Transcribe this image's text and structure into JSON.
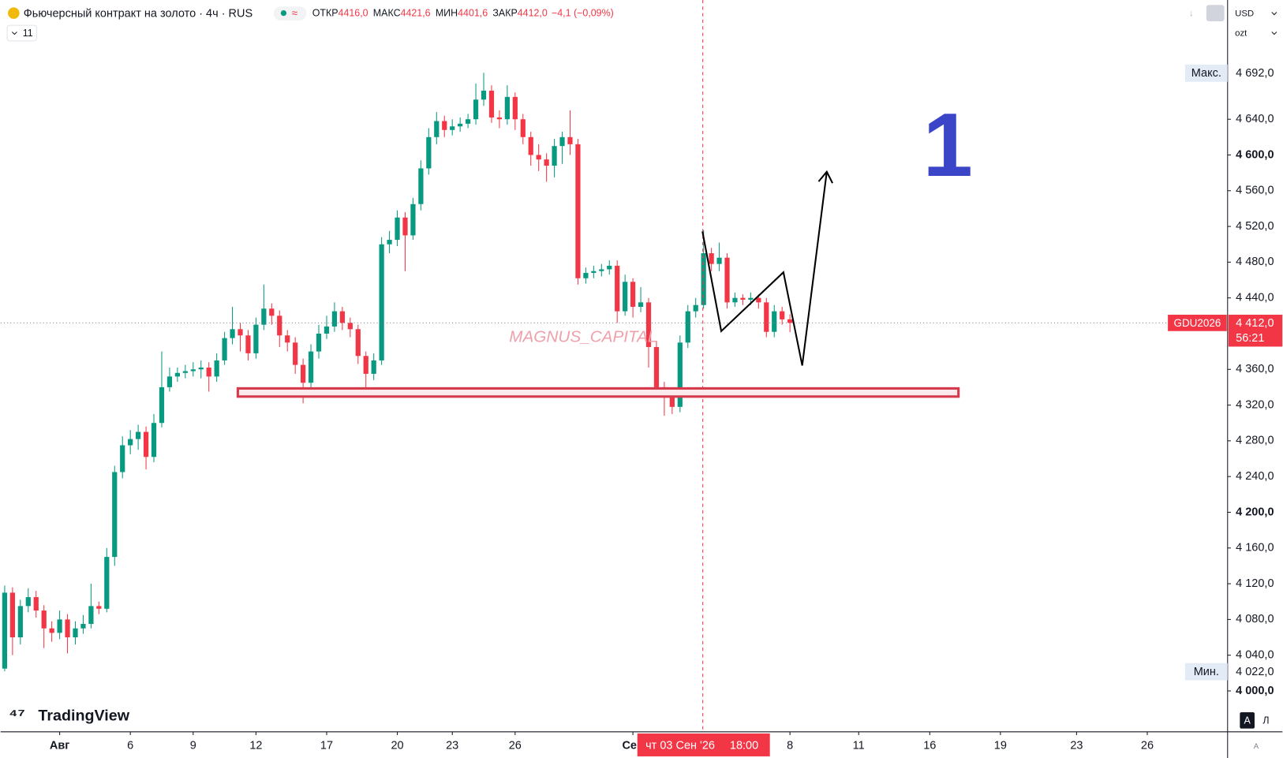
{
  "header": {
    "title": "Фьючерсный контракт на золото · 4ч · RUS",
    "ohlc": [
      {
        "label": "ОТКР",
        "value": "4416,0"
      },
      {
        "label": "МАКС",
        "value": "4421,6"
      },
      {
        "label": "МИН",
        "value": "4401,6"
      },
      {
        "label": "ЗАКР",
        "value": "4412,0"
      }
    ],
    "change": "−4,1 (−0,09%)",
    "indicators": "11",
    "currency": "USD",
    "unit": "ozt"
  },
  "chart_data": {
    "type": "candlestick",
    "watermark": "MAGNUS_CAPITAL",
    "annotation": "1",
    "logo": "TradingView",
    "up_color": "#089981",
    "down_color": "#f23645",
    "open": [
      4025,
      4110,
      4060,
      4095,
      4105,
      4090,
      4070,
      4065,
      4080,
      4060,
      4070,
      4075,
      4095,
      4092,
      4150,
      4245,
      4275,
      4282,
      4290,
      4262,
      4300,
      4340,
      4352,
      4356,
      4358,
      4360,
      4362,
      4352,
      4370,
      4395,
      4405,
      4398,
      4378,
      4410,
      4428,
      4420,
      4398,
      4390,
      4365,
      4345,
      4380,
      4400,
      4408,
      4425,
      4412,
      4405,
      4375,
      4355,
      4370,
      4500,
      4505,
      4530,
      4510,
      4545,
      4585,
      4620,
      4638,
      4628,
      4632,
      4635,
      4640,
      4662,
      4672,
      4642,
      4640,
      4665,
      4640,
      4620,
      4600,
      4595,
      4588,
      4610,
      4620,
      4612,
      4462,
      4468,
      4470,
      4472,
      4476,
      4425,
      4458,
      4430,
      4435,
      4385,
      4340,
      4330,
      4318,
      4390,
      4425,
      4432,
      4490,
      4478,
      4485,
      4435,
      4440,
      4438,
      4440,
      4435,
      4402,
      4425,
      4416
    ],
    "high": [
      4118,
      4116,
      4102,
      4115,
      4112,
      4096,
      4078,
      4090,
      4086,
      4078,
      4085,
      4120,
      4100,
      4160,
      4252,
      4285,
      4292,
      4298,
      4296,
      4310,
      4380,
      4362,
      4362,
      4365,
      4368,
      4370,
      4368,
      4378,
      4402,
      4430,
      4412,
      4404,
      4418,
      4455,
      4434,
      4426,
      4404,
      4396,
      4372,
      4388,
      4410,
      4420,
      4435,
      4430,
      4418,
      4410,
      4380,
      4378,
      4508,
      4515,
      4538,
      4536,
      4552,
      4594,
      4630,
      4648,
      4644,
      4640,
      4642,
      4646,
      4680,
      4692,
      4678,
      4650,
      4678,
      4670,
      4646,
      4626,
      4612,
      4602,
      4618,
      4626,
      4650,
      4618,
      4474,
      4476,
      4478,
      4482,
      4482,
      4466,
      4462,
      4452,
      4440,
      4392,
      4346,
      4336,
      4398,
      4432,
      4440,
      4516,
      4496,
      4502,
      4490,
      4446,
      4444,
      4446,
      4444,
      4440,
      4432,
      4430,
      4421.6
    ],
    "low": [
      4022,
      4040,
      4052,
      4088,
      4082,
      4048,
      4055,
      4058,
      4042,
      4052,
      4064,
      4070,
      4086,
      4088,
      4140,
      4238,
      4265,
      4270,
      4248,
      4256,
      4295,
      4335,
      4346,
      4350,
      4352,
      4350,
      4335,
      4346,
      4365,
      4388,
      4380,
      4370,
      4372,
      4404,
      4410,
      4385,
      4380,
      4355,
      4322,
      4340,
      4372,
      4394,
      4402,
      4404,
      4396,
      4366,
      4340,
      4348,
      4365,
      4490,
      4498,
      4470,
      4505,
      4538,
      4578,
      4612,
      4620,
      4622,
      4626,
      4630,
      4634,
      4655,
      4636,
      4630,
      4634,
      4628,
      4612,
      4588,
      4582,
      4570,
      4575,
      4590,
      4600,
      4455,
      4456,
      4462,
      4464,
      4466,
      4412,
      4420,
      4418,
      4424,
      4362,
      4330,
      4308,
      4310,
      4312,
      4384,
      4418,
      4428,
      4470,
      4470,
      4428,
      4430,
      4432,
      4432,
      4428,
      4396,
      4396,
      4410,
      4401.6
    ],
    "close": [
      4110,
      4060,
      4095,
      4105,
      4090,
      4070,
      4065,
      4080,
      4060,
      4070,
      4075,
      4095,
      4092,
      4150,
      4245,
      4275,
      4282,
      4290,
      4262,
      4300,
      4340,
      4352,
      4356,
      4358,
      4360,
      4362,
      4352,
      4370,
      4395,
      4405,
      4398,
      4378,
      4410,
      4428,
      4420,
      4398,
      4390,
      4365,
      4345,
      4380,
      4400,
      4408,
      4425,
      4412,
      4405,
      4375,
      4355,
      4370,
      4500,
      4505,
      4530,
      4510,
      4545,
      4585,
      4620,
      4638,
      4628,
      4632,
      4635,
      4640,
      4662,
      4672,
      4642,
      4640,
      4665,
      4640,
      4620,
      4600,
      4595,
      4588,
      4610,
      4620,
      4612,
      4462,
      4468,
      4470,
      4472,
      4476,
      4425,
      4458,
      4430,
      4435,
      4385,
      4340,
      4330,
      4318,
      4390,
      4425,
      4432,
      4490,
      4478,
      4485,
      4435,
      4440,
      4438,
      4440,
      4435,
      4402,
      4425,
      4416,
      4412
    ],
    "xlim": [
      -0.52,
      155.73
    ],
    "xticks": [
      {
        "value": 7,
        "label": "Авг"
      },
      {
        "value": 16,
        "label": "6"
      },
      {
        "value": 24,
        "label": "9"
      },
      {
        "value": 32,
        "label": "12"
      },
      {
        "value": 41,
        "label": "17"
      },
      {
        "value": 50,
        "label": "20"
      },
      {
        "value": 57,
        "label": "23"
      },
      {
        "value": 65,
        "label": "26"
      },
      {
        "value": 80,
        "label": "Сен"
      },
      {
        "value": 100,
        "label": "8"
      },
      {
        "value": 108.75,
        "label": "11"
      },
      {
        "value": 117.8,
        "label": "16"
      },
      {
        "value": 126.8,
        "label": "19"
      },
      {
        "value": 136.5,
        "label": "23"
      },
      {
        "value": 145.5,
        "label": "26"
      }
    ],
    "ylim": [
      3954.2,
      4773.5
    ],
    "yticks": [
      {
        "value": 4000,
        "label": "4 000,0"
      },
      {
        "value": 4040,
        "label": "4 040,0"
      },
      {
        "value": 4080,
        "label": "4 080,0"
      },
      {
        "value": 4120,
        "label": "4 120,0"
      },
      {
        "value": 4160,
        "label": "4 160,0"
      },
      {
        "value": 4200,
        "label": "4 200,0"
      },
      {
        "value": 4240,
        "label": "4 240,0"
      },
      {
        "value": 4280,
        "label": "4 280,0"
      },
      {
        "value": 4320,
        "label": "4 320,0"
      },
      {
        "value": 4360,
        "label": "4 360,0"
      },
      {
        "value": 4440,
        "label": "4 440,0"
      },
      {
        "value": 4480,
        "label": "4 480,0"
      },
      {
        "value": 4520,
        "label": "4 520,0"
      },
      {
        "value": 4560,
        "label": "4 560,0"
      },
      {
        "value": 4600,
        "label": "4 600,0"
      },
      {
        "value": 4640,
        "label": "4 640,0"
      }
    ],
    "max_price": {
      "tag": "Макс.",
      "value": 4692,
      "label": "4 692,0"
    },
    "min_price": {
      "tag": "Мин.",
      "value": 4022,
      "label": "4 022,0"
    },
    "last_price": {
      "symbol": "GDU2026",
      "value": 4412,
      "label": "4 412,0",
      "countdown": "56:21"
    },
    "crosshair": {
      "x": 88.9,
      "date_label": "чт 03 Сен '26",
      "time_label": "18:00"
    }
  }
}
